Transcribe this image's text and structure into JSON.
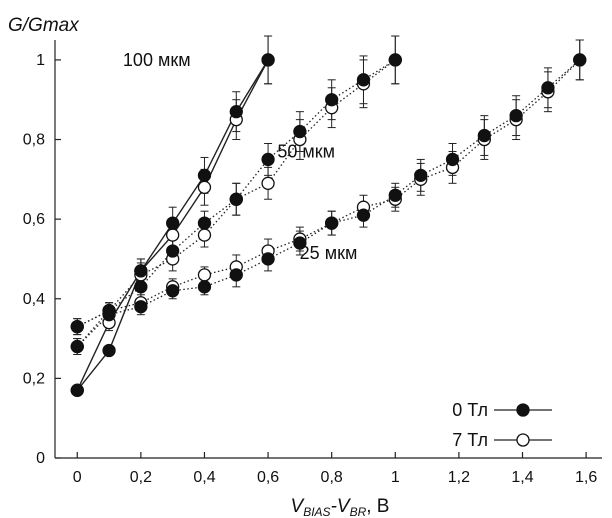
{
  "chart_data": {
    "type": "line",
    "ylabel": "G/Gmax",
    "xlabel": {
      "main": "V",
      "sub1": "BIAS",
      "mid": "-V",
      "sub2": "BR",
      "unit": ", В"
    },
    "xlim": [
      -0.07,
      1.65
    ],
    "ylim": [
      0,
      1.05
    ],
    "x_ticks": [
      0,
      0.2,
      0.4,
      0.6,
      0.8,
      1,
      1.2,
      1.4,
      1.6
    ],
    "x_tick_labels": [
      "0",
      "0,2",
      "0,4",
      "0,6",
      "0,8",
      "1",
      "1,2",
      "1,4",
      "1,6"
    ],
    "y_ticks": [
      0,
      0.2,
      0.4,
      0.6,
      0.8,
      1
    ],
    "y_tick_labels": [
      "0",
      "0,2",
      "0,4",
      "0,6",
      "0,8",
      "1"
    ],
    "grid": false,
    "annotations": [
      {
        "text": "100 мкм",
        "x": 0.25,
        "y": 0.985
      },
      {
        "text": "50 мкм",
        "x": 0.72,
        "y": 0.755
      },
      {
        "text": "25 мкм",
        "x": 0.79,
        "y": 0.5
      }
    ],
    "legend": {
      "position": "bottom-right",
      "entries": [
        {
          "label": "0 Тл",
          "marker": "filled-circle"
        },
        {
          "label": "7 Тл",
          "marker": "open-circle"
        }
      ]
    },
    "series": [
      {
        "group": "100 мкм",
        "field": "0 Тл",
        "marker": "filled",
        "line": "solid",
        "x": [
          0,
          0.1,
          0.2,
          0.3,
          0.4,
          0.5,
          0.6
        ],
        "y": [
          0.17,
          0.27,
          0.47,
          0.59,
          0.71,
          0.87,
          1.0
        ],
        "err": [
          0.01,
          0.01,
          0.03,
          0.04,
          0.045,
          0.05,
          0.06
        ]
      },
      {
        "group": "100 мкм",
        "field": "7 Тл",
        "marker": "open",
        "line": "solid",
        "x": [
          0,
          0.1,
          0.2,
          0.3,
          0.4,
          0.5,
          0.6
        ],
        "y": [
          0.17,
          0.34,
          0.47,
          0.56,
          0.68,
          0.85,
          1.0
        ],
        "err": [
          0.01,
          0.02,
          0.03,
          0.04,
          0.045,
          0.05,
          0.06
        ]
      },
      {
        "group": "50 мкм",
        "field": "0 Тл",
        "marker": "filled",
        "line": "dotted",
        "x": [
          0,
          0.1,
          0.2,
          0.3,
          0.4,
          0.5,
          0.6,
          0.7,
          0.8,
          0.9,
          1.0
        ],
        "y": [
          0.33,
          0.37,
          0.43,
          0.52,
          0.59,
          0.65,
          0.75,
          0.82,
          0.9,
          0.95,
          1.0
        ],
        "err": [
          0.02,
          0.02,
          0.03,
          0.03,
          0.03,
          0.04,
          0.04,
          0.05,
          0.05,
          0.06,
          0.06
        ]
      },
      {
        "group": "50 мкм",
        "field": "7 Тл",
        "marker": "open",
        "line": "dotted",
        "x": [
          0,
          0.1,
          0.2,
          0.3,
          0.4,
          0.5,
          0.6,
          0.7,
          0.8,
          0.9,
          1.0
        ],
        "y": [
          0.33,
          0.37,
          0.46,
          0.5,
          0.56,
          0.65,
          0.69,
          0.8,
          0.88,
          0.94,
          1.0
        ],
        "err": [
          0.02,
          0.02,
          0.03,
          0.03,
          0.03,
          0.04,
          0.04,
          0.05,
          0.05,
          0.06,
          0.06
        ]
      },
      {
        "group": "25 мкм",
        "field": "0 Тл",
        "marker": "filled",
        "line": "dotted",
        "x": [
          0,
          0.1,
          0.2,
          0.3,
          0.4,
          0.5,
          0.6,
          0.7,
          0.8,
          0.9,
          1.0,
          1.08,
          1.18,
          1.28,
          1.38,
          1.48,
          1.58
        ],
        "y": [
          0.28,
          0.36,
          0.38,
          0.42,
          0.43,
          0.46,
          0.5,
          0.54,
          0.59,
          0.61,
          0.66,
          0.71,
          0.75,
          0.81,
          0.86,
          0.93,
          1.0
        ],
        "err": [
          0.02,
          0.02,
          0.02,
          0.02,
          0.02,
          0.03,
          0.03,
          0.03,
          0.03,
          0.03,
          0.03,
          0.04,
          0.04,
          0.05,
          0.05,
          0.05,
          0.05
        ]
      },
      {
        "group": "25 мкм",
        "field": "7 Тл",
        "marker": "open",
        "line": "dotted",
        "x": [
          0,
          0.1,
          0.2,
          0.3,
          0.4,
          0.5,
          0.6,
          0.7,
          0.8,
          0.9,
          1.0,
          1.08,
          1.18,
          1.28,
          1.38,
          1.48,
          1.58
        ],
        "y": [
          0.28,
          0.37,
          0.39,
          0.43,
          0.46,
          0.48,
          0.52,
          0.55,
          0.59,
          0.63,
          0.65,
          0.7,
          0.73,
          0.8,
          0.85,
          0.92,
          1.0
        ],
        "err": [
          0.02,
          0.02,
          0.02,
          0.02,
          0.02,
          0.03,
          0.03,
          0.03,
          0.03,
          0.03,
          0.03,
          0.04,
          0.04,
          0.05,
          0.05,
          0.05,
          0.05
        ]
      }
    ]
  }
}
